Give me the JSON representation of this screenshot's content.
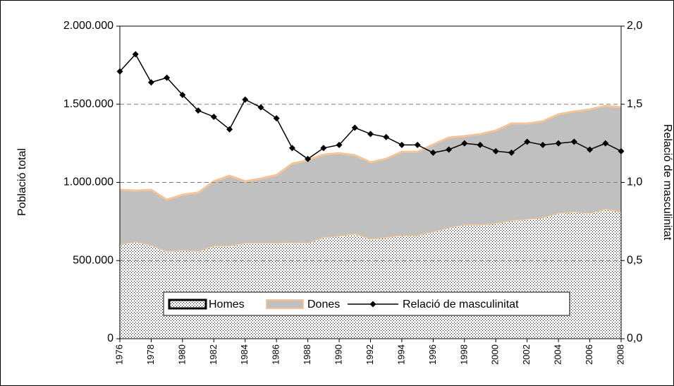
{
  "chart_data": {
    "type": "area",
    "stacked": true,
    "x": [
      1976,
      1977,
      1978,
      1979,
      1980,
      1981,
      1982,
      1983,
      1984,
      1985,
      1986,
      1987,
      1988,
      1989,
      1990,
      1991,
      1992,
      1993,
      1994,
      1995,
      1996,
      1997,
      1998,
      1999,
      2000,
      2001,
      2002,
      2003,
      2004,
      2005,
      2006,
      2007,
      2008
    ],
    "series": [
      {
        "name": "Homes",
        "type": "area",
        "color": "#ffffff",
        "pattern": "dots",
        "edge_color": "#f4c49a",
        "values": [
          605000,
          623000,
          600000,
          560000,
          569000,
          560000,
          596000,
          596000,
          614000,
          614000,
          614000,
          618000,
          614000,
          650000,
          659000,
          673000,
          641000,
          650000,
          664000,
          664000,
          686000,
          713000,
          731000,
          731000,
          740000,
          758000,
          767000,
          776000,
          804000,
          813000,
          804000,
          831000,
          813000
        ]
      },
      {
        "name": "Dones",
        "type": "area",
        "color": "#c0c0c0",
        "edge_color": "#f4c49a",
        "values": [
          348000,
          325000,
          353000,
          329000,
          352000,
          375000,
          411000,
          447000,
          393000,
          411000,
          433000,
          502000,
          528000,
          528000,
          528000,
          501000,
          488000,
          501000,
          532000,
          532000,
          556000,
          574000,
          565000,
          578000,
          592000,
          619000,
          610000,
          615000,
          632000,
          641000,
          663000,
          659000,
          668000
        ]
      },
      {
        "name": "Relació de masculinitat",
        "type": "line",
        "axis": "y2",
        "color": "#000000",
        "marker": "diamond",
        "values": [
          1.71,
          1.82,
          1.64,
          1.67,
          1.56,
          1.46,
          1.42,
          1.34,
          1.53,
          1.48,
          1.41,
          1.22,
          1.15,
          1.22,
          1.24,
          1.35,
          1.31,
          1.29,
          1.24,
          1.24,
          1.19,
          1.21,
          1.25,
          1.24,
          1.2,
          1.19,
          1.26,
          1.24,
          1.25,
          1.26,
          1.21,
          1.25,
          1.2
        ]
      }
    ],
    "ylabel": "Població total",
    "y2label": "Relació de masculinitat",
    "xlim": [
      1976,
      2008
    ],
    "xticks": [
      1976,
      1978,
      1980,
      1982,
      1984,
      1986,
      1988,
      1990,
      1992,
      1994,
      1996,
      1998,
      2000,
      2002,
      2004,
      2006,
      2008
    ],
    "ylim": [
      0,
      2000000
    ],
    "yticks": [
      0,
      {
        "value": 500000,
        "label": "500.000"
      },
      {
        "value": 1000000,
        "label": "1.000.000"
      },
      {
        "value": 1500000,
        "label": "1.500.000"
      },
      {
        "value": 2000000,
        "label": "2.000.000"
      }
    ],
    "y2lim": [
      0,
      2
    ],
    "y2ticks": [
      {
        "value": 0,
        "label": "0,0"
      },
      {
        "value": 0.5,
        "label": "0,5"
      },
      {
        "value": 1,
        "label": "1,0"
      },
      {
        "value": 1.5,
        "label": "1,5"
      },
      {
        "value": 2,
        "label": "2,0"
      }
    ],
    "grid": true,
    "grid_style": "dashed",
    "legend": "bottom"
  }
}
